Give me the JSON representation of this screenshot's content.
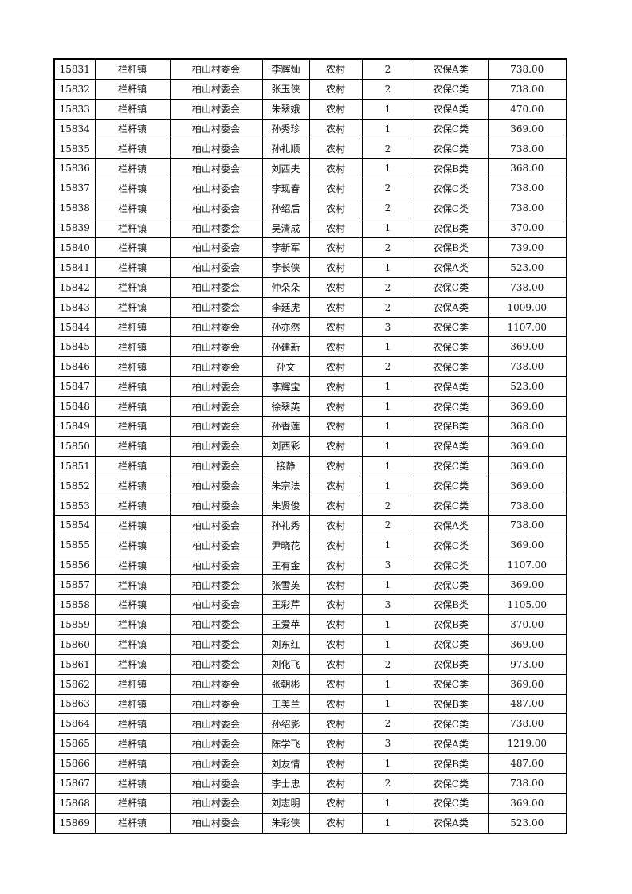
{
  "table": {
    "rows": [
      [
        "15831",
        "栏杆镇",
        "柏山村委会",
        "李辉灿",
        "农村",
        "2",
        "农保A类",
        "738.00"
      ],
      [
        "15832",
        "栏杆镇",
        "柏山村委会",
        "张玉侠",
        "农村",
        "2",
        "农保C类",
        "738.00"
      ],
      [
        "15833",
        "栏杆镇",
        "柏山村委会",
        "朱翠娥",
        "农村",
        "1",
        "农保A类",
        "470.00"
      ],
      [
        "15834",
        "栏杆镇",
        "柏山村委会",
        "孙秀珍",
        "农村",
        "1",
        "农保C类",
        "369.00"
      ],
      [
        "15835",
        "栏杆镇",
        "柏山村委会",
        "孙礼顺",
        "农村",
        "2",
        "农保C类",
        "738.00"
      ],
      [
        "15836",
        "栏杆镇",
        "柏山村委会",
        "刘西夫",
        "农村",
        "1",
        "农保B类",
        "368.00"
      ],
      [
        "15837",
        "栏杆镇",
        "柏山村委会",
        "李现春",
        "农村",
        "2",
        "农保C类",
        "738.00"
      ],
      [
        "15838",
        "栏杆镇",
        "柏山村委会",
        "孙绍后",
        "农村",
        "2",
        "农保C类",
        "738.00"
      ],
      [
        "15839",
        "栏杆镇",
        "柏山村委会",
        "吴清成",
        "农村",
        "1",
        "农保B类",
        "370.00"
      ],
      [
        "15840",
        "栏杆镇",
        "柏山村委会",
        "李新军",
        "农村",
        "2",
        "农保B类",
        "739.00"
      ],
      [
        "15841",
        "栏杆镇",
        "柏山村委会",
        "李长侠",
        "农村",
        "1",
        "农保A类",
        "523.00"
      ],
      [
        "15842",
        "栏杆镇",
        "柏山村委会",
        "仲朵朵",
        "农村",
        "2",
        "农保C类",
        "738.00"
      ],
      [
        "15843",
        "栏杆镇",
        "柏山村委会",
        "李廷虎",
        "农村",
        "2",
        "农保A类",
        "1009.00"
      ],
      [
        "15844",
        "栏杆镇",
        "柏山村委会",
        "孙亦然",
        "农村",
        "3",
        "农保C类",
        "1107.00"
      ],
      [
        "15845",
        "栏杆镇",
        "柏山村委会",
        "孙建新",
        "农村",
        "1",
        "农保C类",
        "369.00"
      ],
      [
        "15846",
        "栏杆镇",
        "柏山村委会",
        "孙文",
        "农村",
        "2",
        "农保C类",
        "738.00"
      ],
      [
        "15847",
        "栏杆镇",
        "柏山村委会",
        "李辉宝",
        "农村",
        "1",
        "农保A类",
        "523.00"
      ],
      [
        "15848",
        "栏杆镇",
        "柏山村委会",
        "徐翠英",
        "农村",
        "1",
        "农保C类",
        "369.00"
      ],
      [
        "15849",
        "栏杆镇",
        "柏山村委会",
        "孙香莲",
        "农村",
        "1",
        "农保B类",
        "368.00"
      ],
      [
        "15850",
        "栏杆镇",
        "柏山村委会",
        "刘西彩",
        "农村",
        "1",
        "农保A类",
        "369.00"
      ],
      [
        "15851",
        "栏杆镇",
        "柏山村委会",
        "接静",
        "农村",
        "1",
        "农保C类",
        "369.00"
      ],
      [
        "15852",
        "栏杆镇",
        "柏山村委会",
        "朱宗法",
        "农村",
        "1",
        "农保C类",
        "369.00"
      ],
      [
        "15853",
        "栏杆镇",
        "柏山村委会",
        "朱贤俊",
        "农村",
        "2",
        "农保C类",
        "738.00"
      ],
      [
        "15854",
        "栏杆镇",
        "柏山村委会",
        "孙礼秀",
        "农村",
        "2",
        "农保A类",
        "738.00"
      ],
      [
        "15855",
        "栏杆镇",
        "柏山村委会",
        "尹晓花",
        "农村",
        "1",
        "农保C类",
        "369.00"
      ],
      [
        "15856",
        "栏杆镇",
        "柏山村委会",
        "王有金",
        "农村",
        "3",
        "农保C类",
        "1107.00"
      ],
      [
        "15857",
        "栏杆镇",
        "柏山村委会",
        "张雪英",
        "农村",
        "1",
        "农保C类",
        "369.00"
      ],
      [
        "15858",
        "栏杆镇",
        "柏山村委会",
        "王彩芹",
        "农村",
        "3",
        "农保B类",
        "1105.00"
      ],
      [
        "15859",
        "栏杆镇",
        "柏山村委会",
        "王爱苹",
        "农村",
        "1",
        "农保B类",
        "370.00"
      ],
      [
        "15860",
        "栏杆镇",
        "柏山村委会",
        "刘东红",
        "农村",
        "1",
        "农保C类",
        "369.00"
      ],
      [
        "15861",
        "栏杆镇",
        "柏山村委会",
        "刘化飞",
        "农村",
        "2",
        "农保B类",
        "973.00"
      ],
      [
        "15862",
        "栏杆镇",
        "柏山村委会",
        "张朝彬",
        "农村",
        "1",
        "农保C类",
        "369.00"
      ],
      [
        "15863",
        "栏杆镇",
        "柏山村委会",
        "王美兰",
        "农村",
        "1",
        "农保B类",
        "487.00"
      ],
      [
        "15864",
        "栏杆镇",
        "柏山村委会",
        "孙绍影",
        "农村",
        "2",
        "农保C类",
        "738.00"
      ],
      [
        "15865",
        "栏杆镇",
        "柏山村委会",
        "陈学飞",
        "农村",
        "3",
        "农保A类",
        "1219.00"
      ],
      [
        "15866",
        "栏杆镇",
        "柏山村委会",
        "刘友情",
        "农村",
        "1",
        "农保B类",
        "487.00"
      ],
      [
        "15867",
        "栏杆镇",
        "柏山村委会",
        "李士忠",
        "农村",
        "2",
        "农保C类",
        "738.00"
      ],
      [
        "15868",
        "栏杆镇",
        "柏山村委会",
        "刘志明",
        "农村",
        "1",
        "农保C类",
        "369.00"
      ],
      [
        "15869",
        "栏杆镇",
        "柏山村委会",
        "朱彩侠",
        "农村",
        "1",
        "农保A类",
        "523.00"
      ]
    ]
  }
}
